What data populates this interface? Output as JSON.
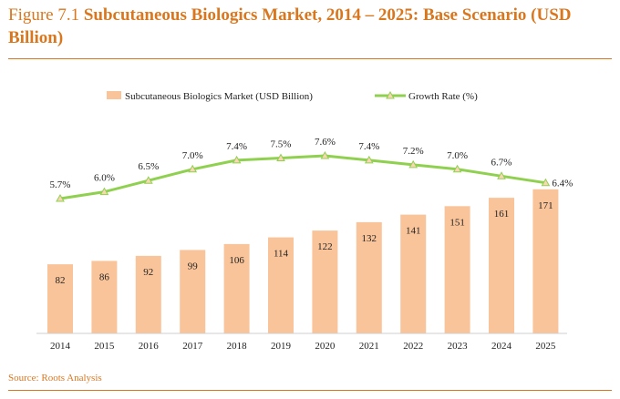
{
  "title": {
    "prefix": "Figure 7.1 ",
    "main": "Subcutaneous Biologics Market, 2014 – 2025: Base Scenario (USD Billion)"
  },
  "source": "Source: Roots Analysis",
  "colors": {
    "accent": "#d9771f",
    "bar": "#f9c49a",
    "line": "#8fd14f",
    "marker": "#fbd5b4"
  },
  "chart_data": {
    "type": "bar",
    "categories": [
      "2014",
      "2015",
      "2016",
      "2017",
      "2018",
      "2019",
      "2020",
      "2021",
      "2022",
      "2023",
      "2024",
      "2025"
    ],
    "series": [
      {
        "name": "Subcutaneous Biologics Market (USD Billion)",
        "type": "bar",
        "values": [
          82,
          86,
          92,
          99,
          106,
          114,
          122,
          132,
          141,
          151,
          161,
          171
        ],
        "labels": [
          "82",
          "86",
          "92",
          "99",
          "106",
          "114",
          "122",
          "132",
          "141",
          "151",
          "161",
          "171"
        ]
      },
      {
        "name": "Growth Rate (%)",
        "type": "line",
        "values": [
          5.7,
          6.0,
          6.5,
          7.0,
          7.4,
          7.5,
          7.6,
          7.4,
          7.2,
          7.0,
          6.7,
          6.4
        ],
        "labels": [
          "5.7%",
          "6.0%",
          "6.5%",
          "7.0%",
          "7.4%",
          "7.5%",
          "7.6%",
          "7.4%",
          "7.2%",
          "7.0%",
          "6.7%",
          "6.4%"
        ]
      }
    ],
    "legend_position": "top",
    "grid": false
  }
}
